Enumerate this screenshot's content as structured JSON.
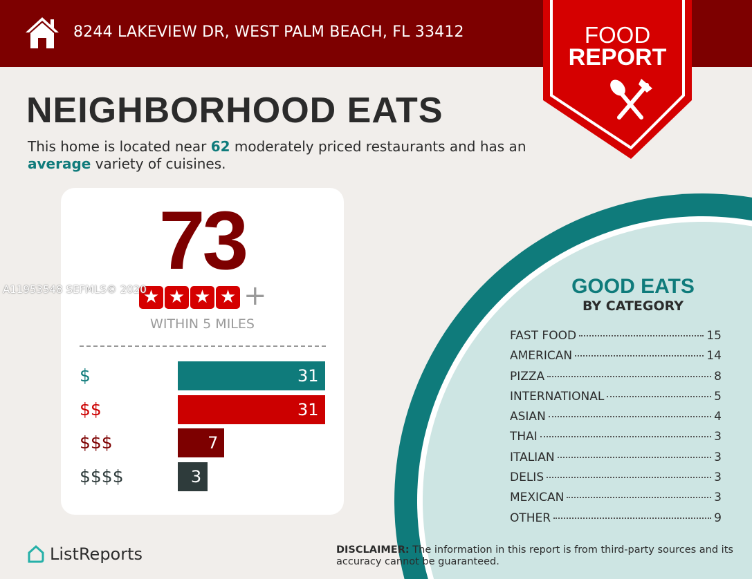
{
  "header": {
    "address": "8244 LAKEVIEW DR, WEST PALM BEACH, FL 33412",
    "icon": "home-icon"
  },
  "badge": {
    "line1": "FOOD",
    "line2": "REPORT",
    "icon": "spoon-fork-icon"
  },
  "title": "NEIGHBORHOOD EATS",
  "subtitle": {
    "pre": "This home is located near ",
    "count": "62",
    "mid": " moderately priced restaurants and has an ",
    "variety": "average",
    "post": " variety of cuisines."
  },
  "score": {
    "value": "73",
    "stars": 4,
    "plus": "+",
    "within": "WITHIN 5 MILES"
  },
  "watermark": "A11953548  SEFMLS© 2020",
  "chart_data": {
    "type": "bar",
    "categories": [
      "$",
      "$$",
      "$$$",
      "$$$$"
    ],
    "values": [
      31,
      31,
      7,
      3
    ],
    "colors": [
      "#0f7b7b",
      "#cc0000",
      "#7d0000",
      "#2e3b3b"
    ],
    "label_colors": [
      "#0f7b7b",
      "#cc0000",
      "#7d0000",
      "#2e3b3b"
    ]
  },
  "categories": {
    "title": "GOOD EATS",
    "subtitle": "BY CATEGORY",
    "items": [
      {
        "name": "FAST FOOD",
        "count": "15"
      },
      {
        "name": "AMERICAN",
        "count": "14"
      },
      {
        "name": "PIZZA",
        "count": "8"
      },
      {
        "name": "INTERNATIONAL",
        "count": "5"
      },
      {
        "name": "ASIAN",
        "count": "4"
      },
      {
        "name": "THAI",
        "count": "3"
      },
      {
        "name": "ITALIAN",
        "count": "3"
      },
      {
        "name": "DELIS",
        "count": "3"
      },
      {
        "name": "MEXICAN",
        "count": "3"
      },
      {
        "name": "OTHER",
        "count": "9"
      }
    ]
  },
  "footer": {
    "logo": "ListReports",
    "disclaimer_label": "DISCLAIMER:",
    "disclaimer": " The information in this report is from third-party sources and its accuracy cannot be guaranteed."
  },
  "colors": {
    "dark_red": "#7d0000",
    "red": "#d50000",
    "teal": "#0f7b7b",
    "light_teal": "#cde5e3",
    "background": "#f1eeeb"
  }
}
